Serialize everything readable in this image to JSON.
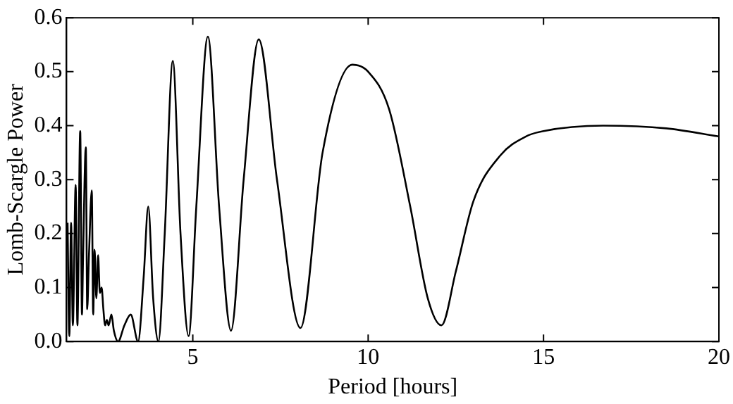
{
  "chart_data": {
    "type": "line",
    "xlabel": "Period [hours]",
    "ylabel": "Lomb-Scargle Power",
    "x": [
      1.43,
      1.48,
      1.53,
      1.58,
      1.66,
      1.71,
      1.79,
      1.84,
      1.87,
      1.95,
      1.99,
      2.04,
      2.12,
      2.16,
      2.2,
      2.25,
      2.3,
      2.35,
      2.4,
      2.45,
      2.5,
      2.55,
      2.6,
      2.68,
      2.75,
      2.87,
      3.05,
      3.23,
      3.44,
      3.6,
      3.73,
      3.87,
      4.02,
      4.2,
      4.43,
      4.65,
      4.88,
      5.1,
      5.43,
      5.75,
      6.09,
      6.45,
      6.88,
      7.4,
      8.07,
      8.7,
      9.55,
      10,
      10.6,
      11.2,
      11.7,
      12.09,
      12.5,
      13,
      13.77,
      14.5,
      15,
      16.7,
      18.5,
      20
    ],
    "series": [
      {
        "color": "#000000",
        "values": [
          0.22,
          0.01,
          0.22,
          0.03,
          0.29,
          0.03,
          0.39,
          0.05,
          0.15,
          0.36,
          0.06,
          0.16,
          0.28,
          0.05,
          0.17,
          0.08,
          0.16,
          0.09,
          0.1,
          0.06,
          0.03,
          0.04,
          0.03,
          0.05,
          0.02,
          0.0,
          0.03,
          0.05,
          0.0,
          0.12,
          0.25,
          0.08,
          0.0,
          0.2,
          0.52,
          0.2,
          0.01,
          0.25,
          0.565,
          0.25,
          0.02,
          0.3,
          0.56,
          0.3,
          0.025,
          0.35,
          0.513,
          0.5,
          0.43,
          0.25,
          0.08,
          0.03,
          0.13,
          0.26,
          0.345,
          0.38,
          0.39,
          0.4,
          0.395,
          0.38
        ]
      }
    ],
    "xlim": [
      1.4,
      20
    ],
    "xticks": [
      5,
      10,
      15,
      20
    ],
    "ylim": [
      0,
      0.6
    ],
    "yticks": [
      {
        "value": 0,
        "label": "0.0"
      },
      {
        "value": 0.1,
        "label": "0.1"
      },
      {
        "value": 0.2,
        "label": "0.2"
      },
      {
        "value": 0.3,
        "label": "0.3"
      },
      {
        "value": 0.4,
        "label": "0.4"
      },
      {
        "value": 0.5,
        "label": "0.5"
      },
      {
        "value": 0.6,
        "label": "0.6"
      }
    ],
    "grid": false,
    "legend": false,
    "marker": "none",
    "line_style": "solid"
  }
}
